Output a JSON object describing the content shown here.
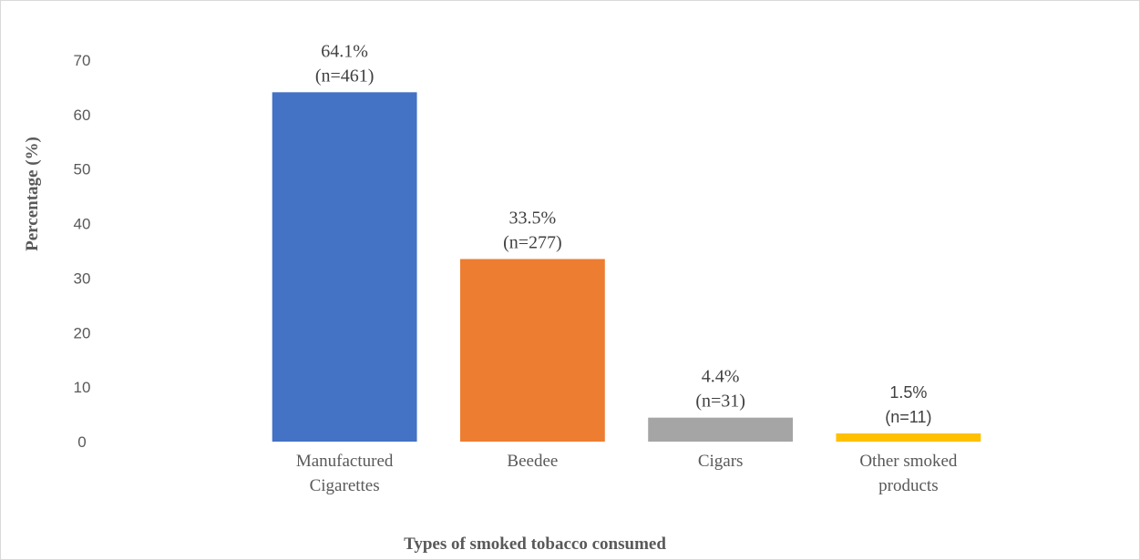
{
  "chart_data": {
    "type": "bar",
    "categories": [
      [
        "Manufactured",
        "Cigarettes"
      ],
      [
        "Beedee"
      ],
      [
        "Cigars"
      ],
      [
        "Other smoked",
        "products"
      ]
    ],
    "values": [
      64.1,
      33.5,
      4.4,
      1.5
    ],
    "data_labels": [
      [
        "64.1%",
        "(n=461)"
      ],
      [
        "33.5%",
        "(n=277)"
      ],
      [
        "4.4%",
        "(n=31)"
      ],
      [
        "1.5%",
        "(n=11)"
      ]
    ],
    "colors": [
      "#4472C4",
      "#ED7D31",
      "#A5A5A5",
      "#FFC000"
    ],
    "title": "",
    "xlabel": "Types of smoked tobacco consumed",
    "ylabel": "Percentage (%)",
    "ylim": [
      0,
      70
    ],
    "yticks": [
      0,
      10,
      20,
      30,
      40,
      50,
      60,
      70
    ],
    "grid": false,
    "legend": "none"
  }
}
